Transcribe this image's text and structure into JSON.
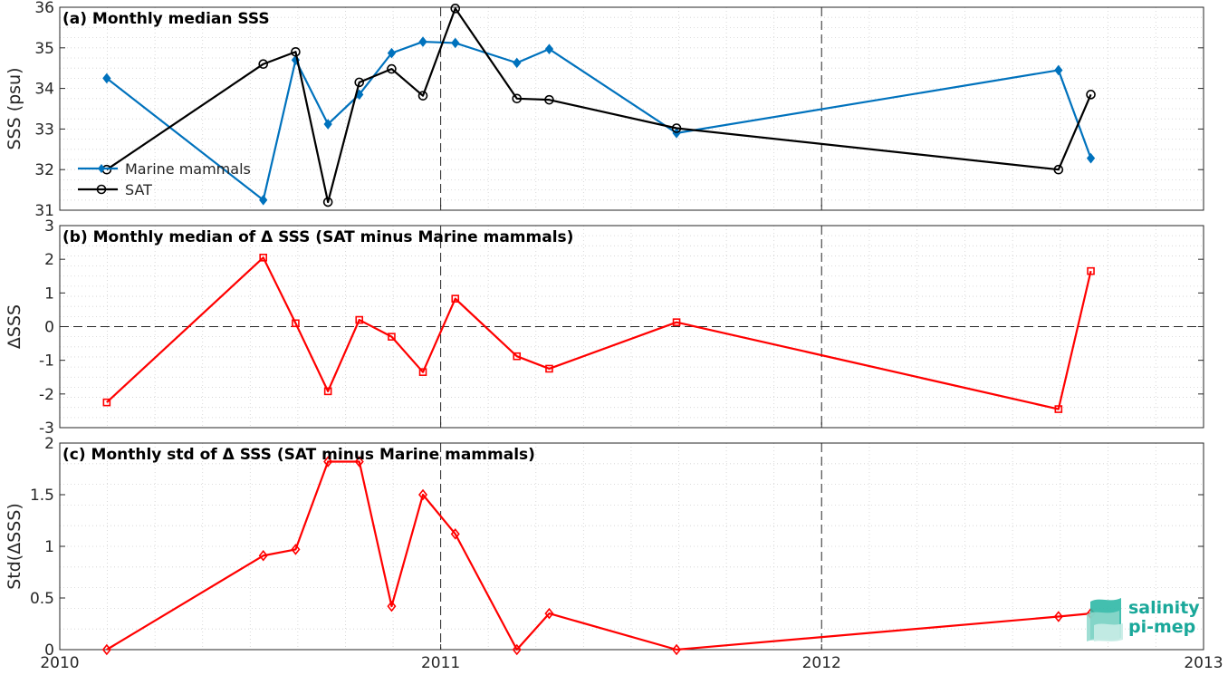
{
  "chart_data": [
    {
      "type": "line",
      "title": "(a) Monthly median SSS",
      "xlabel": "",
      "ylabel": "SSS (psu)",
      "xlim": [
        "2010-01-01",
        "2013-01-01"
      ],
      "ylim": [
        31,
        36
      ],
      "yticks": [
        31,
        32,
        33,
        34,
        35,
        36
      ],
      "grid": true,
      "legend_position": "lower-left",
      "series": [
        {
          "name": "Marine mammals",
          "color": "#0072bd",
          "marker": "diamond-filled",
          "points": [
            {
              "x": "2010-02-15",
              "y": 34.25
            },
            {
              "x": "2010-07-15",
              "y": 31.25
            },
            {
              "x": "2010-08-15",
              "y": 34.7
            },
            {
              "x": "2010-09-15",
              "y": 33.12
            },
            {
              "x": "2010-10-15",
              "y": 33.85
            },
            {
              "x": "2010-11-15",
              "y": 34.87
            },
            {
              "x": "2010-12-15",
              "y": 35.15
            },
            {
              "x": "2011-01-15",
              "y": 35.12
            },
            {
              "x": "2011-03-15",
              "y": 34.63
            },
            {
              "x": "2011-04-15",
              "y": 34.97
            },
            {
              "x": "2011-08-15",
              "y": 32.9
            },
            {
              "x": "2012-08-15",
              "y": 34.45
            },
            {
              "x": "2012-09-15",
              "y": 32.28
            }
          ]
        },
        {
          "name": "SAT",
          "color": "#000000",
          "marker": "circle-open",
          "points": [
            {
              "x": "2010-02-15",
              "y": 32.0
            },
            {
              "x": "2010-07-15",
              "y": 34.6
            },
            {
              "x": "2010-08-15",
              "y": 34.9
            },
            {
              "x": "2010-09-15",
              "y": 31.2
            },
            {
              "x": "2010-10-15",
              "y": 34.15
            },
            {
              "x": "2010-11-15",
              "y": 34.48
            },
            {
              "x": "2010-12-15",
              "y": 33.82
            },
            {
              "x": "2011-01-15",
              "y": 35.97
            },
            {
              "x": "2011-03-15",
              "y": 33.75
            },
            {
              "x": "2011-04-15",
              "y": 33.72
            },
            {
              "x": "2011-08-15",
              "y": 33.02
            },
            {
              "x": "2012-08-15",
              "y": 32.0
            },
            {
              "x": "2012-09-15",
              "y": 33.85
            }
          ]
        }
      ]
    },
    {
      "type": "line",
      "title": "(b) Monthly median of Δ SSS (SAT minus Marine mammals)",
      "xlabel": "",
      "ylabel": "ΔSSS",
      "xlim": [
        "2010-01-01",
        "2013-01-01"
      ],
      "ylim": [
        -3,
        3
      ],
      "yticks": [
        -3,
        -2,
        -1,
        0,
        1,
        2,
        3
      ],
      "grid": true,
      "reference_line_y": 0,
      "series": [
        {
          "color": "#ff0000",
          "marker": "square-open",
          "points": [
            {
              "x": "2010-02-15",
              "y": -2.25
            },
            {
              "x": "2010-07-15",
              "y": 2.05
            },
            {
              "x": "2010-08-15",
              "y": 0.1
            },
            {
              "x": "2010-09-15",
              "y": -1.92
            },
            {
              "x": "2010-10-15",
              "y": 0.2
            },
            {
              "x": "2010-11-15",
              "y": -0.3
            },
            {
              "x": "2010-12-15",
              "y": -1.35
            },
            {
              "x": "2011-01-15",
              "y": 0.83
            },
            {
              "x": "2011-03-15",
              "y": -0.88
            },
            {
              "x": "2011-04-15",
              "y": -1.25
            },
            {
              "x": "2011-08-15",
              "y": 0.13
            },
            {
              "x": "2012-08-15",
              "y": -2.45
            },
            {
              "x": "2012-09-15",
              "y": 1.65
            }
          ]
        }
      ]
    },
    {
      "type": "line",
      "title": "(c) Monthly std of Δ SSS (SAT minus Marine mammals)",
      "xlabel": "",
      "ylabel": "Std(ΔSSS)",
      "xlim": [
        "2010-01-01",
        "2013-01-01"
      ],
      "ylim": [
        0,
        2
      ],
      "yticks": [
        "0",
        "0.5",
        "1",
        "1.5",
        "2"
      ],
      "xticks": [
        "2010",
        "2011",
        "2012",
        "2013"
      ],
      "grid": true,
      "series": [
        {
          "color": "#ff0000",
          "marker": "diamond-open",
          "points": [
            {
              "x": "2010-02-15",
              "y": 0.0
            },
            {
              "x": "2010-07-15",
              "y": 0.91
            },
            {
              "x": "2010-08-15",
              "y": 0.97
            },
            {
              "x": "2010-09-15",
              "y": 1.82
            },
            {
              "x": "2010-10-15",
              "y": 1.82
            },
            {
              "x": "2010-11-15",
              "y": 0.42
            },
            {
              "x": "2010-12-15",
              "y": 1.5
            },
            {
              "x": "2011-01-15",
              "y": 1.12
            },
            {
              "x": "2011-03-15",
              "y": 0.0
            },
            {
              "x": "2011-04-15",
              "y": 0.35
            },
            {
              "x": "2011-08-15",
              "y": 0.0
            },
            {
              "x": "2012-08-15",
              "y": 0.32
            },
            {
              "x": "2012-09-15",
              "y": 0.35
            }
          ]
        }
      ]
    }
  ],
  "logo": {
    "line1": "salinity",
    "line2": "pi-mep",
    "color": "#1aa89a"
  }
}
